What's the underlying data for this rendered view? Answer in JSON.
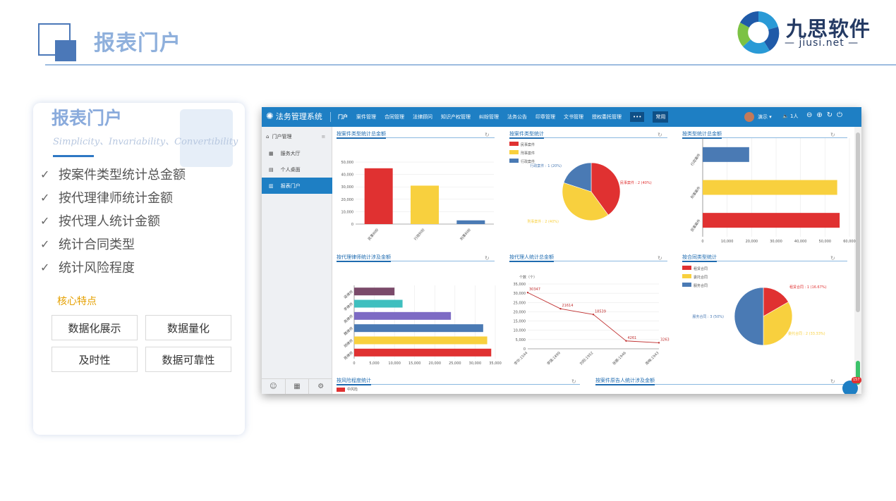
{
  "slide": {
    "title": "报表门户",
    "logo": {
      "name": "九思软件",
      "domain": "jiusi.net"
    }
  },
  "card": {
    "title": "报表门户",
    "subtitle": "Simplicity、Invariability、Convertibility",
    "features": [
      "按案件类型统计总金额",
      "按代理律师统计金额",
      "按代理人统计金额",
      "统计合同类型",
      "统计风险程度"
    ],
    "core_label": "核心特点",
    "buttons": [
      "数据化展示",
      "数据量化",
      "及时性",
      "数据可靠性"
    ]
  },
  "app": {
    "brand": "法务管理系统",
    "menu": [
      "门户",
      "案件管理",
      "合同管理",
      "法律顾问",
      "知识产权管理",
      "纠纷管理",
      "法务公告",
      "印章管理",
      "文书管理",
      "授权委托管理",
      "•••",
      "常用"
    ],
    "user": {
      "name": "演示",
      "online": "1人"
    },
    "sidebar": {
      "header": "门户管理",
      "items": [
        "服务大厅",
        "个人桌面",
        "报表门户"
      ],
      "active_index": 2
    },
    "panels": {
      "p1": "按案件类型统计总金额",
      "p2": "按案件类型统计",
      "p3": "按类型统计总金额",
      "p4": "按代理律师统计涉及金额",
      "p5": "按代理人统计总金额",
      "p6": "按合同类型统计",
      "p7": "按风险程度统计",
      "p8": "按案件原告人统计涉及金额",
      "p7_legend": "中风险",
      "badge": "157"
    },
    "colors": {
      "red": "#e03131",
      "yellow": "#f8d03e",
      "blue": "#4a7ab4",
      "teal": "#3fbfbf",
      "purple": "#7d6bc4",
      "plum": "#7a4a6a",
      "topbar": "#1e7fc4"
    }
  },
  "chart_data": [
    {
      "type": "bar",
      "title": "按案件类型统计总金额",
      "categories": [
        "民事纠纷",
        "行政纠纷",
        "刑事纠纷"
      ],
      "values": [
        45000,
        31000,
        3000
      ],
      "ylim": [
        0,
        50000
      ],
      "yticks": [
        "0",
        "10,000",
        "20,000",
        "30,000",
        "40,000",
        "50,000"
      ]
    },
    {
      "type": "pie",
      "title": "按案件类型统计",
      "legend": [
        "民事案件",
        "刑事案件",
        "行政案件"
      ],
      "slices": [
        {
          "name": "民事案件",
          "value": 2,
          "label": "民事案件 : 2 (40%)"
        },
        {
          "name": "刑事案件",
          "value": 2,
          "label": "刑事案件 : 2 (40%)"
        },
        {
          "name": "行政案件",
          "value": 1,
          "label": "行政案件 : 1 (20%)"
        }
      ]
    },
    {
      "type": "bar",
      "orientation": "horizontal",
      "title": "按类型统计总金额",
      "categories": [
        "行政案件",
        "刑事案件",
        "民事案件"
      ],
      "values": [
        19000,
        55000,
        56000
      ],
      "xlim": [
        0,
        60000
      ],
      "xticks": [
        "0",
        "10,000",
        "20,000",
        "30,000",
        "40,000",
        "50,000",
        "60,000"
      ]
    },
    {
      "type": "bar",
      "orientation": "horizontal",
      "title": "按代理律师统计涉及金额",
      "categories": [
        "梁律师",
        "李律师",
        "高律师",
        "魏律师",
        "胡律师",
        "周律师"
      ],
      "values": [
        10000,
        12000,
        24000,
        32000,
        33000,
        34000
      ],
      "xlim": [
        0,
        35000
      ],
      "xticks": [
        "0",
        "5,000",
        "10,000",
        "15,000",
        "20,000",
        "25,000",
        "30,000",
        "35,000"
      ]
    },
    {
      "type": "line",
      "title": "按代理人统计总金额",
      "ylabel": "个数（个）",
      "categories": [
        "李华:1544",
        "李强:1899",
        "刘阳:1952",
        "张娜:1946",
        "周梅:1943"
      ],
      "values": [
        30347,
        21614,
        18539,
        4261,
        3263
      ],
      "ylim": [
        0,
        35000
      ],
      "yticks": [
        "0",
        "5,000",
        "10,000",
        "15,000",
        "20,000",
        "25,000",
        "30,000",
        "35,000"
      ]
    },
    {
      "type": "pie",
      "title": "按合同类型统计",
      "legend": [
        "租赁合同",
        "委托合同",
        "服务合同"
      ],
      "slices": [
        {
          "name": "租赁合同",
          "value": 1,
          "label": "租赁合同 : 1 (16.67%)"
        },
        {
          "name": "委托合同",
          "value": 2,
          "label": "委托合同 : 2 (33.33%)"
        },
        {
          "name": "服务合同",
          "value": 3,
          "label": "服务合同 : 3 (50%)"
        }
      ]
    }
  ]
}
